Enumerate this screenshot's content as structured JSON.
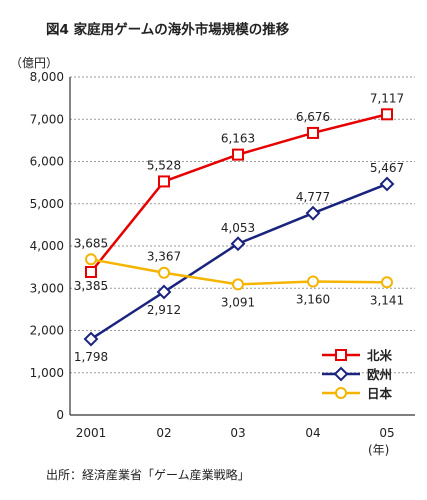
{
  "header": {
    "title": "図4  家庭用ゲームの海外市場規模の推移",
    "unit": "（億円）",
    "year_label": "(年)"
  },
  "footer": {
    "source": "出所：経済産業省「ゲーム産業戦略」"
  },
  "colors": {
    "north_america": "#e60000",
    "europe": "#1a237e",
    "japan": "#f5b400",
    "grid": "#9a9a9a",
    "axis": "#333333"
  },
  "chart_data": {
    "type": "line",
    "x": [
      "2001",
      "02",
      "03",
      "04",
      "05"
    ],
    "ylim": [
      0,
      8000
    ],
    "yticks": [
      "0",
      "1,000",
      "2,000",
      "3,000",
      "4,000",
      "5,000",
      "6,000",
      "7,000",
      "8,000"
    ],
    "ylabel": "（億円）",
    "xlabel": "(年)",
    "grid": true,
    "legend_position": "bottom-right",
    "series": [
      {
        "name": "北米",
        "marker": "square",
        "color": "#e60000",
        "values": [
          3385,
          5528,
          6163,
          6676,
          7117
        ],
        "labels": [
          "3,385",
          "5,528",
          "6,163",
          "6,676",
          "7,117"
        ]
      },
      {
        "name": "欧州",
        "marker": "diamond",
        "color": "#1a237e",
        "values": [
          1798,
          2912,
          4053,
          4777,
          5467
        ],
        "labels": [
          "1,798",
          "2,912",
          "4,053",
          "4,777",
          "5,467"
        ]
      },
      {
        "name": "日本",
        "marker": "circle",
        "color": "#f5b400",
        "values": [
          3685,
          3367,
          3091,
          3160,
          3141
        ],
        "labels": [
          "3,685",
          "3,367",
          "3,091",
          "3,160",
          "3,141"
        ]
      }
    ]
  }
}
